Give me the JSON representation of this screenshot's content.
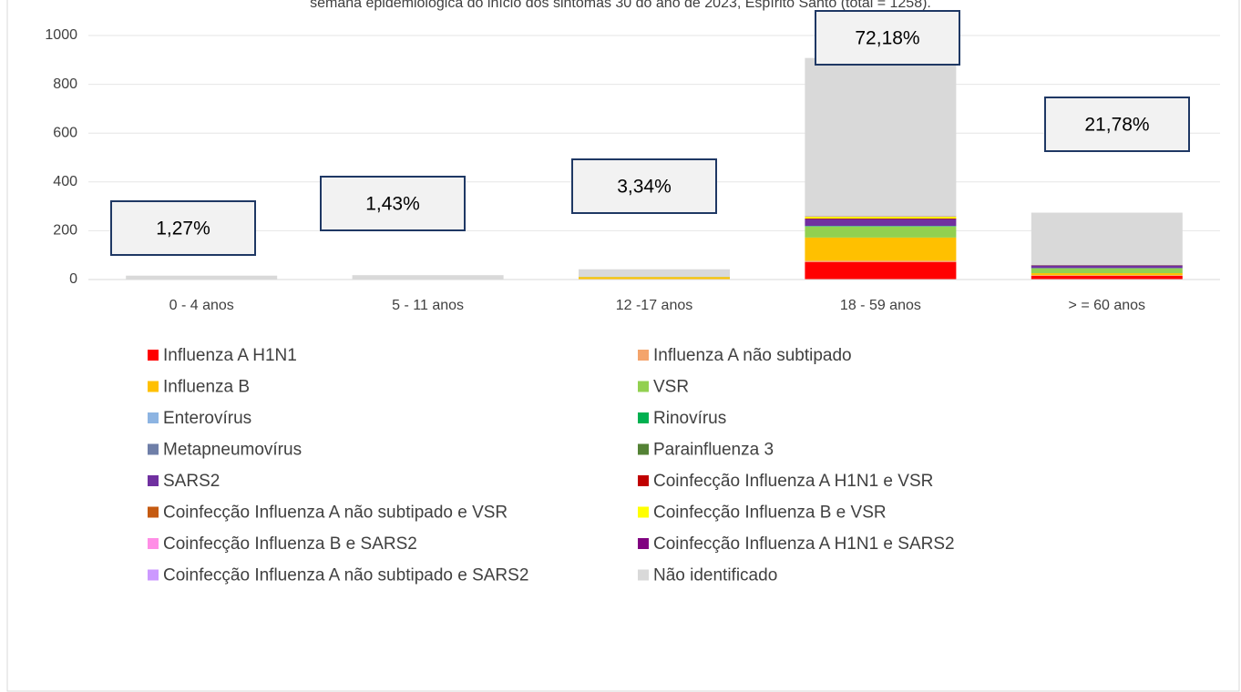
{
  "chart_data": {
    "type": "stacked_bar",
    "title": "semana epidemiológica do início dos sintomas 30 do ano de 2023, Espírito Santo (total = 1258).",
    "categories": [
      "0 - 4  anos",
      "5 - 11 anos",
      "12 -17 anos",
      "18 - 59 anos",
      "> = 60 anos"
    ],
    "percent_labels": [
      "1,27%",
      "1,43%",
      "3,34%",
      "72,18%",
      "21,78%"
    ],
    "ylim": [
      0,
      1000
    ],
    "yticks": [
      0,
      200,
      400,
      600,
      800,
      1000
    ],
    "grid": true,
    "series": [
      {
        "name": "Influenza A H1N1",
        "color": "#ff0000",
        "values": [
          0,
          0,
          0,
          72,
          15
        ]
      },
      {
        "name": "Influenza A não subtipado",
        "color": "#f4a46c",
        "values": [
          0,
          0,
          0,
          5,
          3
        ]
      },
      {
        "name": "Influenza B",
        "color": "#ffc000",
        "values": [
          1,
          2,
          10,
          95,
          8
        ]
      },
      {
        "name": "VSR",
        "color": "#92d050",
        "values": [
          1,
          0,
          1,
          45,
          20
        ]
      },
      {
        "name": "Enterovírus",
        "color": "#8db4e2",
        "values": [
          0,
          0,
          0,
          0,
          0
        ]
      },
      {
        "name": "Rinovírus",
        "color": "#00b050",
        "values": [
          0,
          0,
          0,
          2,
          1
        ]
      },
      {
        "name": "Metapneumovírus",
        "color": "#6f7fa8",
        "values": [
          0,
          0,
          0,
          1,
          0
        ]
      },
      {
        "name": "Parainfluenza 3",
        "color": "#548235",
        "values": [
          0,
          0,
          0,
          0,
          0
        ]
      },
      {
        "name": "SARS2",
        "color": "#7030a0",
        "values": [
          0,
          0,
          0,
          28,
          12
        ]
      },
      {
        "name": "Coinfecção Influenza A H1N1 e  VSR",
        "color": "#c00000",
        "values": [
          0,
          0,
          0,
          2,
          0
        ]
      },
      {
        "name": "Coinfecção Influenza A não subtipado e  VSR",
        "color": "#c55a11",
        "values": [
          0,
          0,
          0,
          0,
          0
        ]
      },
      {
        "name": "Coinfecção Influenza B e  VSR",
        "color": "#ffff00",
        "values": [
          0,
          0,
          0,
          8,
          1
        ]
      },
      {
        "name": "Coinfecção Influenza B e  SARS2",
        "color": "#ff8ee6",
        "values": [
          0,
          0,
          0,
          0,
          0
        ]
      },
      {
        "name": "Coinfecção Influenza A H1N1 e  SARS2",
        "color": "#800080",
        "values": [
          0,
          0,
          0,
          1,
          0
        ]
      },
      {
        "name": "Coinfecção Influenza A não subtipado e  SARS2",
        "color": "#cc99ff",
        "values": [
          0,
          0,
          0,
          0,
          0
        ]
      },
      {
        "name": "Não identificado",
        "color": "#d9d9d9",
        "values": [
          14,
          16,
          31,
          649,
          214
        ]
      }
    ]
  }
}
